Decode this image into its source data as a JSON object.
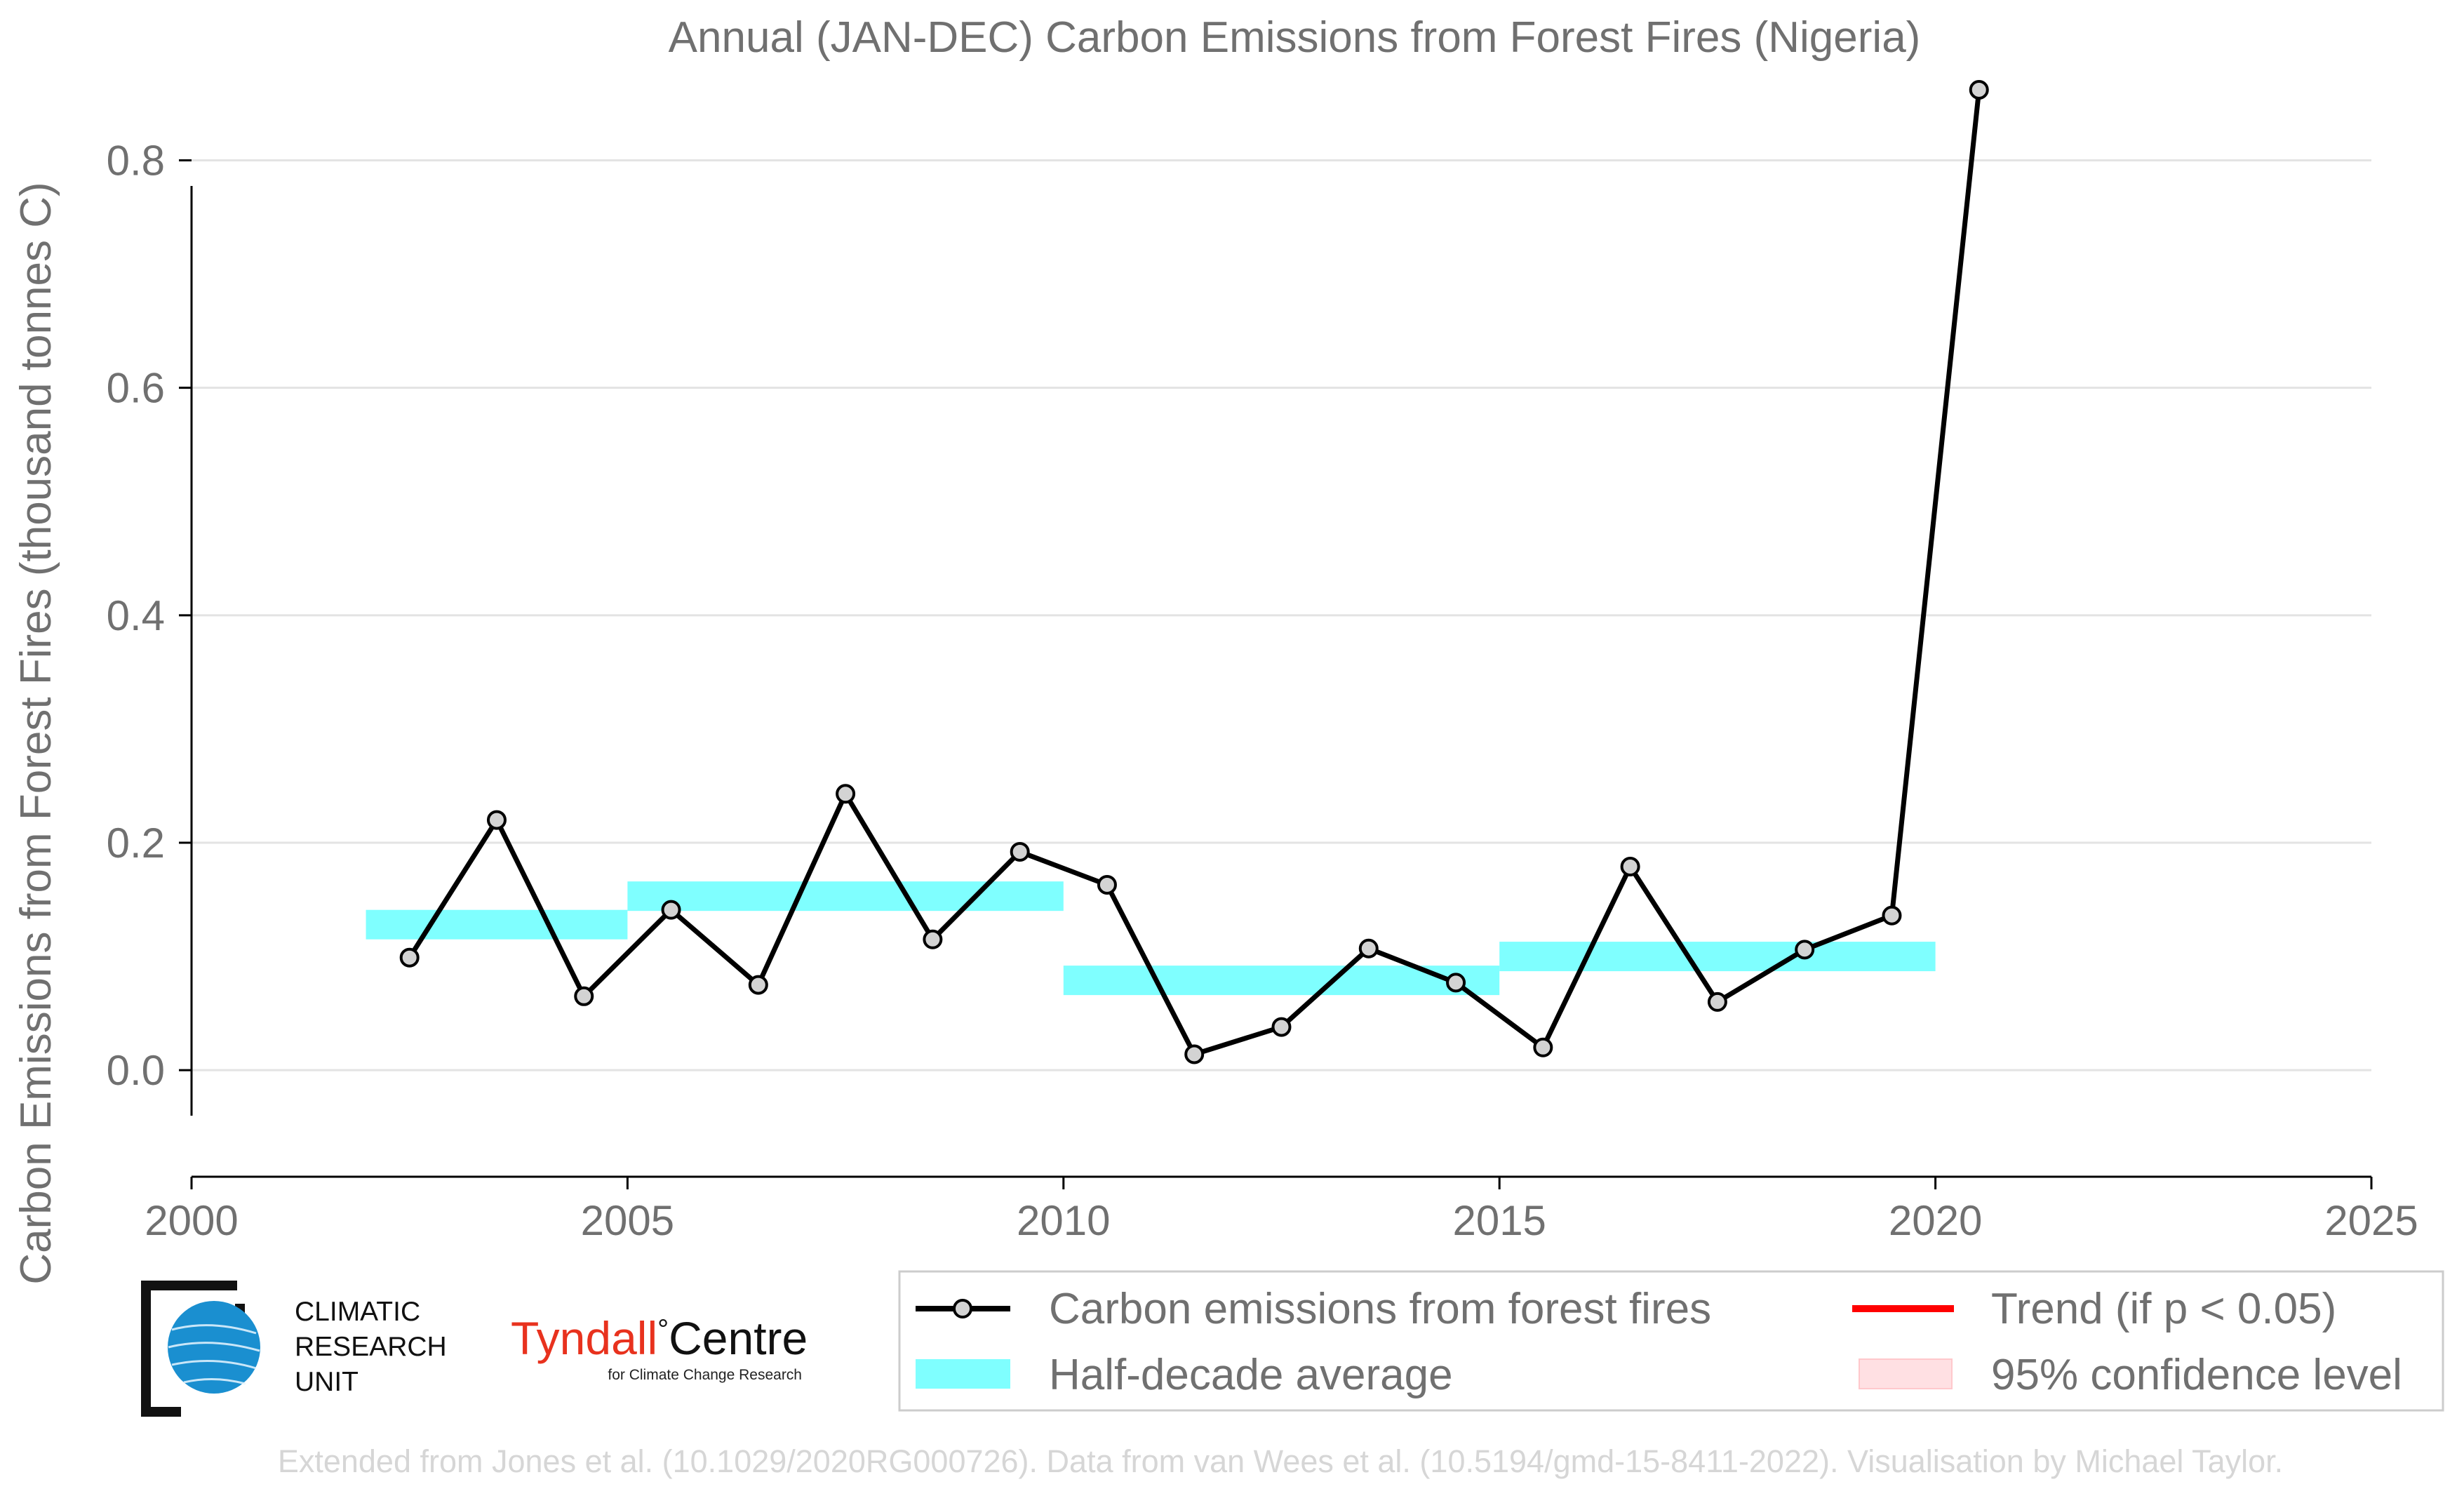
{
  "chart_data": {
    "type": "line",
    "title": "Annual (JAN-DEC) Carbon Emissions from Forest Fires (Nigeria)",
    "xlabel": "",
    "ylabel": "Carbon Emissions from Forest Fires (thousand tonnes C)",
    "xlim": [
      2000,
      2025
    ],
    "ylim": [
      -0.04,
      0.87
    ],
    "x_ticks": [
      "2000",
      "2005",
      "2010",
      "2015",
      "2020",
      "2025"
    ],
    "y_ticks": [
      "0.0",
      "0.2",
      "0.4",
      "0.6",
      "0.8"
    ],
    "grid": "horizontal",
    "series": [
      {
        "name": "Carbon emissions from forest fires",
        "color": "#000000",
        "x": [
          2002.5,
          2003.5,
          2004.5,
          2005.5,
          2006.5,
          2007.5,
          2008.5,
          2009.5,
          2010.5,
          2011.5,
          2012.5,
          2013.5,
          2014.5,
          2015.5,
          2016.5,
          2017.5,
          2018.5,
          2019.5,
          2020.5
        ],
        "y": [
          0.099,
          0.22,
          0.065,
          0.141,
          0.075,
          0.243,
          0.115,
          0.192,
          0.163,
          0.014,
          0.038,
          0.107,
          0.077,
          0.02,
          0.179,
          0.06,
          0.106,
          0.136,
          0.862
        ]
      }
    ],
    "half_decade_averages": {
      "name": "Half-decade average",
      "color": "#7fffff",
      "segments": [
        {
          "start": 2002,
          "end": 2005,
          "value": 0.128
        },
        {
          "start": 2005,
          "end": 2010,
          "value": 0.153
        },
        {
          "start": 2010,
          "end": 2015,
          "value": 0.079
        },
        {
          "start": 2015,
          "end": 2020,
          "value": 0.1
        }
      ]
    },
    "legend": {
      "position": "bottom-right",
      "items": [
        {
          "label": "Carbon emissions from forest fires",
          "color": "#000000",
          "kind": "line-marker"
        },
        {
          "label": "Trend (if p < 0.05)",
          "color": "#ff0000",
          "kind": "line"
        },
        {
          "label": "Half-decade average",
          "color": "#7fffff",
          "kind": "patch"
        },
        {
          "label": "95% confidence level",
          "color": "#ffe0e3",
          "kind": "patch"
        }
      ]
    }
  },
  "logos": {
    "cru_lines": [
      "CLIMATIC",
      "RESEARCH",
      "UNIT"
    ],
    "tyndall_main": "Tyndall",
    "tyndall_degree": "°",
    "tyndall_centre": "Centre",
    "tyndall_sub": "for Climate Change Research",
    "tyndall_color": "#e8321e"
  },
  "credit": "Extended from Jones et al. (10.1029/2020RG000726). Data from van Wees et al. (10.5194/gmd-15-8411-2022). Visualisation by Michael Taylor."
}
